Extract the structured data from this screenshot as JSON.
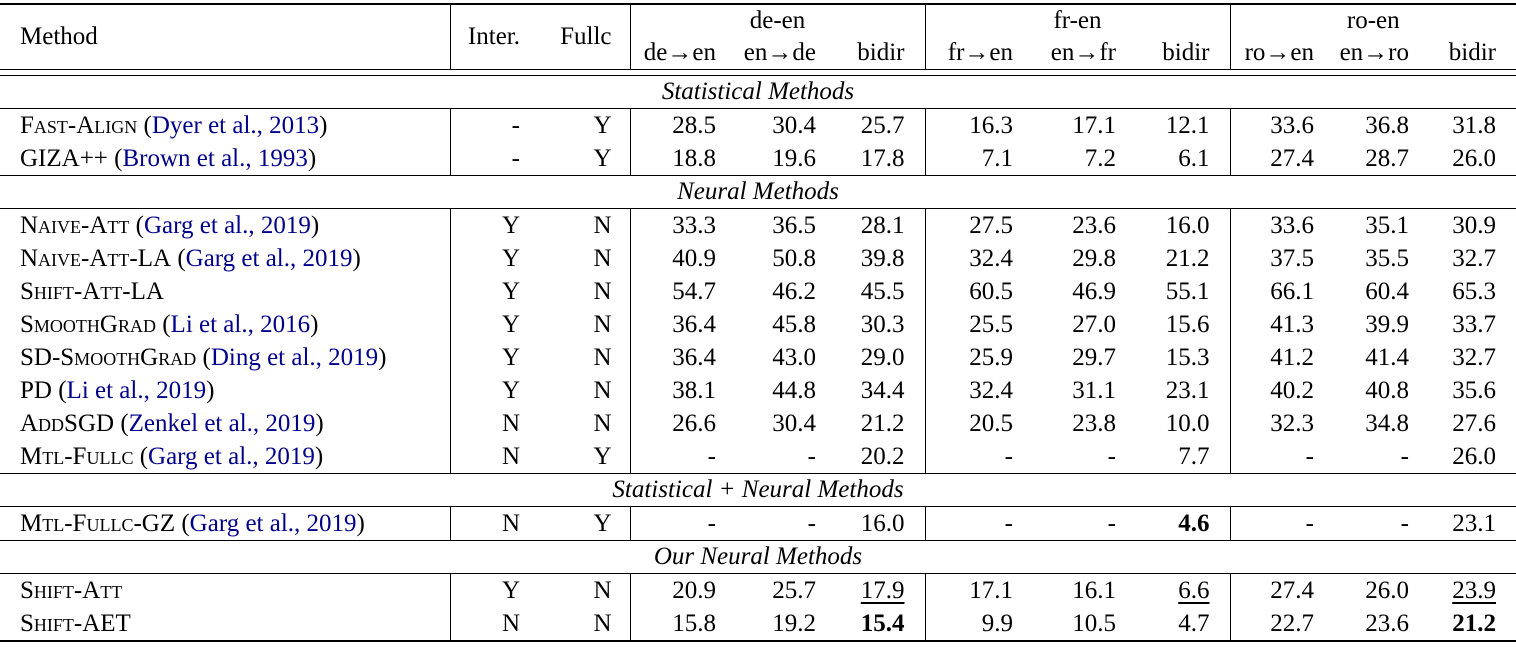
{
  "colors": {
    "citation": "#00008B",
    "text": "#000000",
    "rule": "#000000"
  },
  "punct": {
    "open": "(",
    "close": ")"
  },
  "header": {
    "method": "Method",
    "inter": "Inter.",
    "fullc": "Fullc",
    "groups": [
      {
        "label": "de-en",
        "cols": [
          "de→en",
          "en→de",
          "bidir"
        ]
      },
      {
        "label": "fr-en",
        "cols": [
          "fr→en",
          "en→fr",
          "bidir"
        ]
      },
      {
        "label": "ro-en",
        "cols": [
          "ro→en",
          "en→ro",
          "bidir"
        ]
      }
    ]
  },
  "sections": [
    {
      "title": "Statistical Methods",
      "rows": [
        {
          "method": "Fast-Align",
          "cite": "Dyer et al., 2013",
          "inter": "-",
          "fullc": "Y",
          "values": [
            "28.5",
            "30.4",
            "25.7",
            "16.3",
            "17.1",
            "12.1",
            "33.6",
            "36.8",
            "31.8"
          ],
          "bold": [],
          "underline": []
        },
        {
          "method": "GIZA++",
          "cite": "Brown et al., 1993",
          "inter": "-",
          "fullc": "Y",
          "values": [
            "18.8",
            "19.6",
            "17.8",
            "7.1",
            "7.2",
            "6.1",
            "27.4",
            "28.7",
            "26.0"
          ],
          "bold": [],
          "underline": []
        }
      ]
    },
    {
      "title": "Neural Methods",
      "rows": [
        {
          "method": "Naive-Att",
          "cite": "Garg et al., 2019",
          "inter": "Y",
          "fullc": "N",
          "values": [
            "33.3",
            "36.5",
            "28.1",
            "27.5",
            "23.6",
            "16.0",
            "33.6",
            "35.1",
            "30.9"
          ],
          "bold": [],
          "underline": []
        },
        {
          "method": "Naive-Att-LA",
          "cite": "Garg et al., 2019",
          "inter": "Y",
          "fullc": "N",
          "values": [
            "40.9",
            "50.8",
            "39.8",
            "32.4",
            "29.8",
            "21.2",
            "37.5",
            "35.5",
            "32.7"
          ],
          "bold": [],
          "underline": []
        },
        {
          "method": "Shift-Att-LA",
          "cite": null,
          "inter": "Y",
          "fullc": "N",
          "values": [
            "54.7",
            "46.2",
            "45.5",
            "60.5",
            "46.9",
            "55.1",
            "66.1",
            "60.4",
            "65.3"
          ],
          "bold": [],
          "underline": []
        },
        {
          "method": "SmoothGrad",
          "cite": "Li et al., 2016",
          "inter": "Y",
          "fullc": "N",
          "values": [
            "36.4",
            "45.8",
            "30.3",
            "25.5",
            "27.0",
            "15.6",
            "41.3",
            "39.9",
            "33.7"
          ],
          "bold": [],
          "underline": []
        },
        {
          "method": "SD-SmoothGrad",
          "cite": "Ding et al., 2019",
          "inter": "Y",
          "fullc": "N",
          "values": [
            "36.4",
            "43.0",
            "29.0",
            "25.9",
            "29.7",
            "15.3",
            "41.2",
            "41.4",
            "32.7"
          ],
          "bold": [],
          "underline": []
        },
        {
          "method": "PD",
          "cite": "Li et al., 2019",
          "inter": "Y",
          "fullc": "N",
          "values": [
            "38.1",
            "44.8",
            "34.4",
            "32.4",
            "31.1",
            "23.1",
            "40.2",
            "40.8",
            "35.6"
          ],
          "bold": [],
          "underline": []
        },
        {
          "method": "AddSGD",
          "cite": "Zenkel et al., 2019",
          "inter": "N",
          "fullc": "N",
          "values": [
            "26.6",
            "30.4",
            "21.2",
            "20.5",
            "23.8",
            "10.0",
            "32.3",
            "34.8",
            "27.6"
          ],
          "bold": [],
          "underline": []
        },
        {
          "method": "Mtl-Fullc",
          "cite": "Garg et al., 2019",
          "inter": "N",
          "fullc": "Y",
          "values": [
            "-",
            "-",
            "20.2",
            "-",
            "-",
            "7.7",
            "-",
            "-",
            "26.0"
          ],
          "bold": [],
          "underline": []
        }
      ]
    },
    {
      "title": "Statistical + Neural Methods",
      "rows": [
        {
          "method": "Mtl-Fullc-GZ",
          "cite": "Garg et al., 2019",
          "inter": "N",
          "fullc": "Y",
          "values": [
            "-",
            "-",
            "16.0",
            "-",
            "-",
            "4.6",
            "-",
            "-",
            "23.1"
          ],
          "bold": [
            5
          ],
          "underline": []
        }
      ]
    },
    {
      "title": "Our Neural Methods",
      "rows": [
        {
          "method": "Shift-Att",
          "cite": null,
          "inter": "Y",
          "fullc": "N",
          "values": [
            "20.9",
            "25.7",
            "17.9",
            "17.1",
            "16.1",
            "6.6",
            "27.4",
            "26.0",
            "23.9"
          ],
          "bold": [],
          "underline": [
            2,
            5,
            8
          ]
        },
        {
          "method": "Shift-AET",
          "cite": null,
          "inter": "N",
          "fullc": "N",
          "values": [
            "15.8",
            "19.2",
            "15.4",
            "9.9",
            "10.5",
            "4.7",
            "22.7",
            "23.6",
            "21.2"
          ],
          "bold": [
            2,
            8
          ],
          "underline": []
        }
      ]
    }
  ]
}
